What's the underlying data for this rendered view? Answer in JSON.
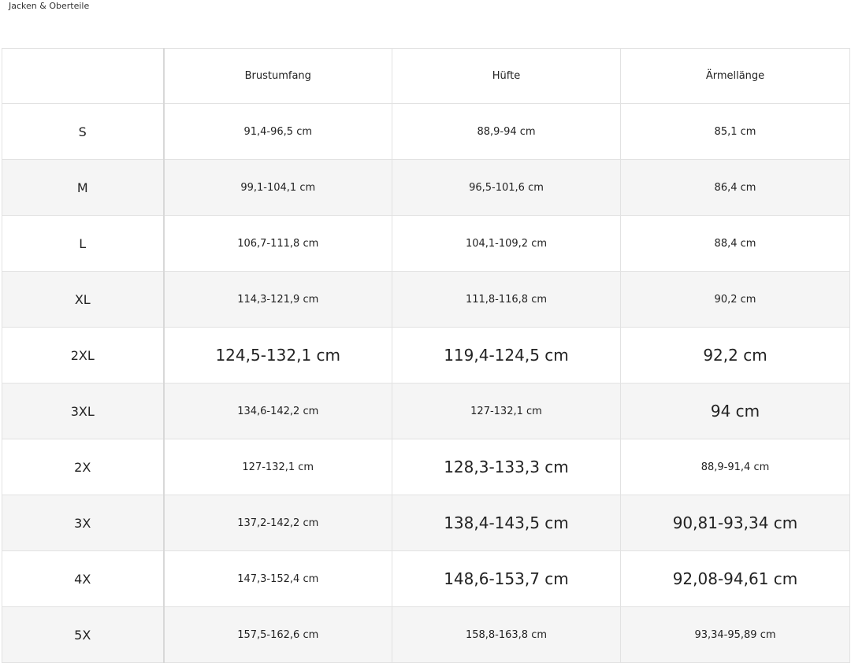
{
  "header": {
    "title": "Jacken & Oberteile"
  },
  "table": {
    "columns": [
      "Brustumfang",
      "Hüfte",
      "Ärmellänge"
    ],
    "rows": [
      [
        "S",
        "91,4-96,5 cm",
        "88,9-94 cm",
        "85,1 cm"
      ],
      [
        "M",
        "99,1-104,1 cm",
        "96,5-101,6 cm",
        "86,4 cm"
      ],
      [
        "L",
        "106,7-111,8 cm",
        "104,1-109,2 cm",
        "88,4 cm"
      ],
      [
        "XL",
        "114,3-121,9 cm",
        "111,8-116,8 cm",
        "90,2 cm"
      ],
      [
        "2XL",
        "124,5-132,1 cm",
        "119,4-124,5 cm",
        "92,2 cm"
      ],
      [
        "3XL",
        "134,6-142,2 cm",
        "127-132,1 cm",
        "94 cm"
      ],
      [
        "2X",
        "127-132,1 cm",
        "128,3-133,3 cm",
        "88,9-91,4 cm"
      ],
      [
        "3X",
        "137,2-142,2 cm",
        "138,4-143,5 cm",
        "90,81-93,34 cm"
      ],
      [
        "4X",
        "147,3-152,4 cm",
        "148,6-153,7 cm",
        "92,08-94,61 cm"
      ],
      [
        "5X",
        "157,5-162,6 cm",
        "158,8-163,8 cm",
        "93,34-95,89 cm"
      ]
    ]
  }
}
